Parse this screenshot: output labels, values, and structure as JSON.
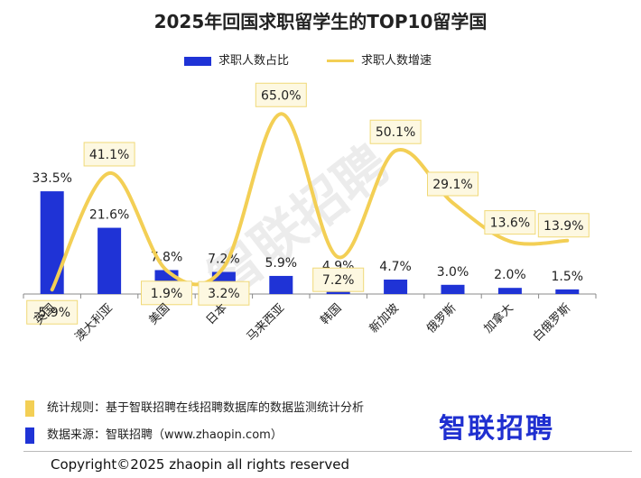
{
  "title": "2025年回国求职留学生的TOP10留学国",
  "watermark": "智联招聘",
  "legend": {
    "bar_label": "求职人数占比",
    "line_label": "求职人数增速"
  },
  "notes": {
    "rule": "统计规则：基于智联招聘在线招聘数据库的数据监测统计分析",
    "source": "数据来源：智联招聘（www.zhaopin.com）"
  },
  "brand": "智联招聘",
  "copyright": "Copyright©2025 zhaopin all rights reserved",
  "colors": {
    "bar": "#1f33d6",
    "line": "#f3cf55",
    "label_box_fill": "#fdf8e1",
    "label_box_border": "#f0d978"
  },
  "chart_data": {
    "type": "bar",
    "categories": [
      "英国",
      "澳大利亚",
      "美国",
      "日本",
      "马来西亚",
      "韩国",
      "新加坡",
      "俄罗斯",
      "加拿大",
      "白俄罗斯"
    ],
    "series": [
      {
        "name": "求职人数占比",
        "type": "bar",
        "values": [
          33.5,
          21.6,
          7.8,
          7.2,
          5.9,
          4.9,
          4.7,
          3.0,
          2.0,
          1.5
        ],
        "labels": [
          "33.5%",
          "21.6%",
          "7.8%",
          "7.2%",
          "5.9%",
          "4.9%",
          "4.7%",
          "3.0%",
          "2.0%",
          "1.5%"
        ]
      },
      {
        "name": "求职人数增速",
        "type": "line",
        "values": [
          -5.9,
          41.1,
          1.9,
          3.2,
          65.0,
          7.2,
          50.1,
          29.1,
          13.6,
          13.9
        ],
        "labels": [
          "-5.9%",
          "41.1%",
          "1.9%",
          "3.2%",
          "65.0%",
          "7.2%",
          "50.1%",
          "29.1%",
          "13.6%",
          "13.9%"
        ]
      }
    ],
    "grid": false,
    "legend_position": "top"
  }
}
